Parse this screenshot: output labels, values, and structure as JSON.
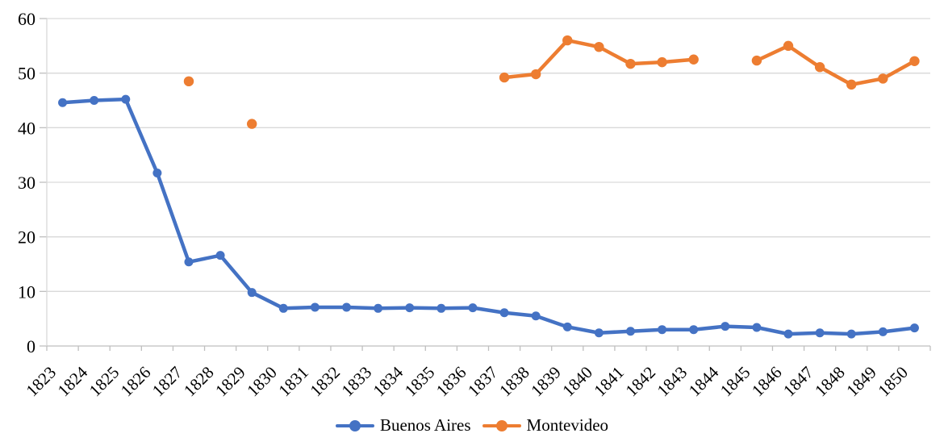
{
  "chart_data": {
    "type": "line",
    "title": "",
    "xlabel": "",
    "ylabel": "",
    "categories": [
      "1823",
      "1824",
      "1825",
      "1826",
      "1827",
      "1828",
      "1829",
      "1830",
      "1831",
      "1832",
      "1833",
      "1834",
      "1835",
      "1836",
      "1837",
      "1838",
      "1839",
      "1840",
      "1841",
      "1842",
      "1843",
      "1844",
      "1845",
      "1846",
      "1847",
      "1848",
      "1849",
      "1850"
    ],
    "series": [
      {
        "name": "Buenos Aires",
        "color": "#4472C4",
        "values": [
          44.6,
          45.0,
          45.2,
          31.7,
          15.4,
          16.6,
          9.8,
          6.9,
          7.1,
          7.1,
          6.9,
          7.0,
          6.9,
          7.0,
          6.1,
          5.5,
          3.5,
          2.4,
          2.7,
          3.0,
          3.0,
          3.6,
          3.4,
          2.2,
          2.4,
          2.2,
          2.6,
          3.3
        ]
      },
      {
        "name": "Montevideo",
        "color": "#ED7D31",
        "values": [
          null,
          null,
          null,
          null,
          48.5,
          null,
          40.7,
          null,
          null,
          null,
          null,
          null,
          null,
          null,
          49.2,
          49.8,
          56.0,
          54.8,
          51.7,
          52.0,
          52.5,
          null,
          52.3,
          55.0,
          51.1,
          47.9,
          49.0,
          52.2
        ]
      }
    ],
    "y_ticks": [
      0,
      10,
      20,
      30,
      40,
      50,
      60
    ],
    "ylim": [
      0,
      60
    ],
    "grid": true,
    "x_label_rotation_deg": 45,
    "legend_position": "bottom",
    "colors": {
      "gridline": "#D9D9D9",
      "axis": "#BFBFBF",
      "tick_label_text": "#000000"
    }
  }
}
